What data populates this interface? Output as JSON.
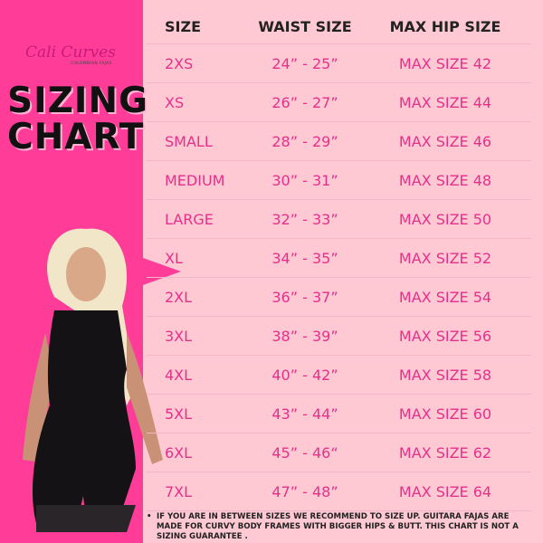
{
  "brand": {
    "name": "Cali Curves",
    "tagline": "COLOMBIAN FAJAS"
  },
  "title": {
    "line1": "SIZING",
    "line2": "CHART"
  },
  "colors": {
    "left_panel": "#ff3d99",
    "background": "#ffc9d4",
    "value_text": "#e5308a",
    "header_text": "#222222"
  },
  "table": {
    "headers": [
      "SIZE",
      "WAIST SIZE",
      "MAX HIP SIZE"
    ],
    "rows": [
      [
        "2XS",
        "24” - 25”",
        "MAX SIZE 42"
      ],
      [
        "XS",
        "26” - 27”",
        "MAX SIZE 44"
      ],
      [
        "SMALL",
        "28” - 29”",
        "MAX SIZE 46"
      ],
      [
        "MEDIUM",
        "30” - 31”",
        "MAX SIZE 48"
      ],
      [
        "LARGE",
        "32” - 33”",
        "MAX SIZE 50"
      ],
      [
        "XL",
        "34” - 35”",
        "MAX SIZE 52"
      ],
      [
        "2XL",
        "36” - 37”",
        "MAX SIZE 54"
      ],
      [
        "3XL",
        "38” - 39”",
        "MAX SIZE 56"
      ],
      [
        "4XL",
        "40” - 42”",
        "MAX SIZE 58"
      ],
      [
        "5XL",
        "43” - 44”",
        "MAX SIZE 60"
      ],
      [
        "6XL",
        "45” - 46“",
        "MAX SIZE 62"
      ],
      [
        "7XL",
        "47” - 48”",
        "MAX SIZE 64"
      ]
    ]
  },
  "note": {
    "bullet": "•",
    "text": "IF YOU ARE IN BETWEEN SIZES WE RECOMMEND TO SIZE UP. GUITARA FAJAS ARE MADE FOR CURVY BODY FRAMES WITH BIGGER HIPS & BUTT. THIS CHART IS NOT A SIZING GUARANTEE ."
  }
}
